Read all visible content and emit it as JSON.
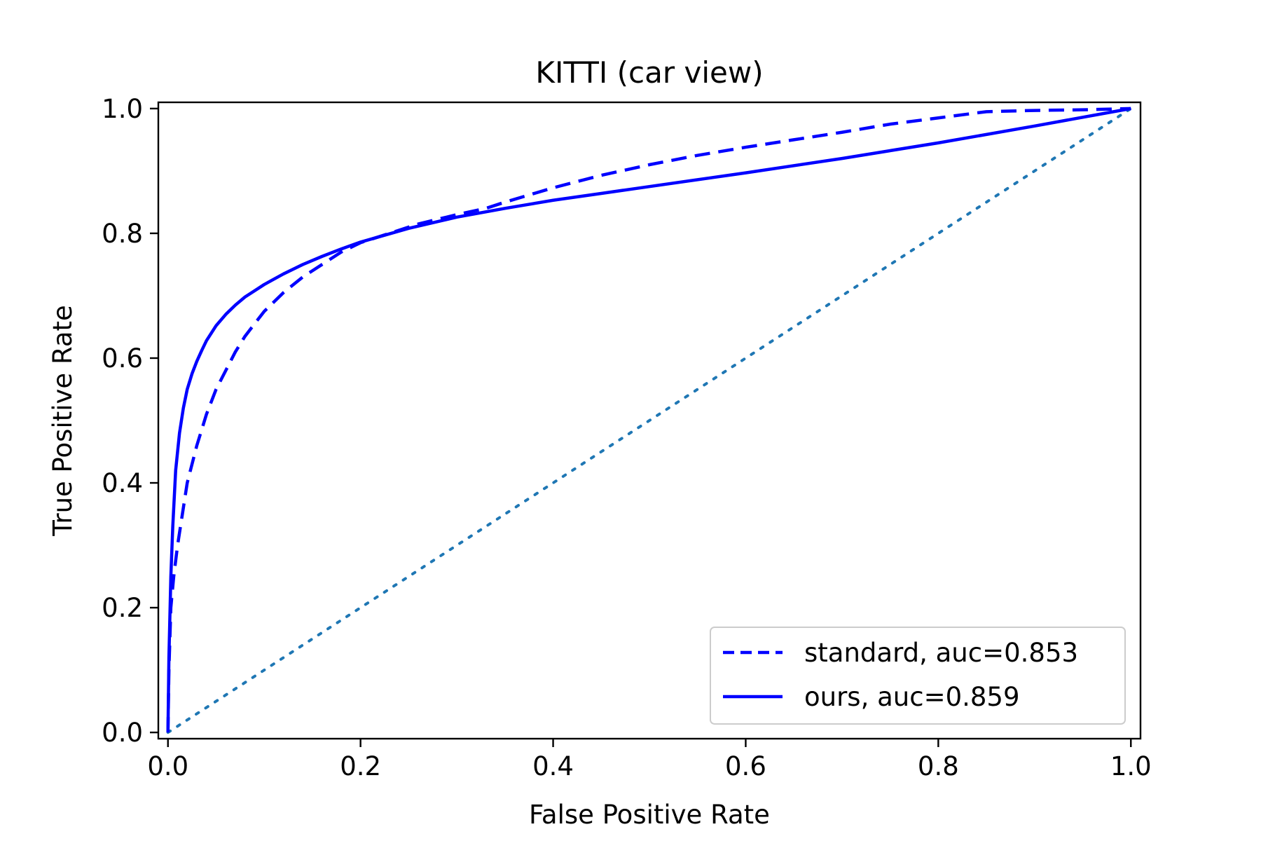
{
  "chart_data": {
    "type": "line",
    "title": "KITTI (car view)",
    "xlabel": "False Positive Rate",
    "ylabel": "True Positive Rate",
    "xlim": [
      -0.01,
      1.01
    ],
    "ylim": [
      -0.01,
      1.01
    ],
    "xticks": [
      "0.0",
      "0.2",
      "0.4",
      "0.6",
      "0.8",
      "1.0"
    ],
    "yticks": [
      "0.0",
      "0.2",
      "0.4",
      "0.6",
      "0.8",
      "1.0"
    ],
    "grid": false,
    "legend_position": "lower-right",
    "series": [
      {
        "name": "standard, auc=0.853",
        "style": "dashed",
        "color": "#0000ff",
        "x": [
          0.0,
          0.001,
          0.003,
          0.006,
          0.01,
          0.015,
          0.02,
          0.03,
          0.04,
          0.05,
          0.06,
          0.07,
          0.08,
          0.09,
          0.1,
          0.12,
          0.14,
          0.16,
          0.18,
          0.2,
          0.23,
          0.26,
          0.3,
          0.33,
          0.35,
          0.4,
          0.45,
          0.5,
          0.55,
          0.6,
          0.65,
          0.7,
          0.75,
          0.8,
          0.85,
          0.9,
          0.95,
          1.0
        ],
        "y": [
          0.0,
          0.1,
          0.2,
          0.25,
          0.3,
          0.35,
          0.4,
          0.46,
          0.51,
          0.55,
          0.58,
          0.61,
          0.635,
          0.655,
          0.675,
          0.705,
          0.73,
          0.75,
          0.77,
          0.785,
          0.8,
          0.815,
          0.83,
          0.84,
          0.85,
          0.873,
          0.893,
          0.91,
          0.925,
          0.938,
          0.95,
          0.962,
          0.975,
          0.985,
          0.995,
          0.997,
          0.998,
          1.0
        ]
      },
      {
        "name": "ours, auc=0.859",
        "style": "solid",
        "color": "#0000ff",
        "x": [
          0.0,
          0.001,
          0.003,
          0.005,
          0.008,
          0.012,
          0.016,
          0.02,
          0.025,
          0.03,
          0.035,
          0.04,
          0.05,
          0.06,
          0.07,
          0.08,
          0.09,
          0.1,
          0.12,
          0.14,
          0.16,
          0.18,
          0.2,
          0.25,
          0.3,
          0.35,
          0.4,
          0.45,
          0.5,
          0.6,
          0.7,
          0.8,
          0.9,
          1.0
        ],
        "y": [
          0.0,
          0.12,
          0.25,
          0.33,
          0.42,
          0.48,
          0.52,
          0.55,
          0.575,
          0.595,
          0.612,
          0.628,
          0.652,
          0.67,
          0.685,
          0.698,
          0.708,
          0.718,
          0.735,
          0.75,
          0.763,
          0.775,
          0.786,
          0.808,
          0.826,
          0.84,
          0.853,
          0.864,
          0.875,
          0.897,
          0.92,
          0.945,
          0.972,
          1.0
        ]
      },
      {
        "name": "",
        "style": "dotted",
        "color": "#1f77b4",
        "x": [
          0.0,
          1.0
        ],
        "y": [
          0.0,
          1.0
        ]
      }
    ]
  }
}
